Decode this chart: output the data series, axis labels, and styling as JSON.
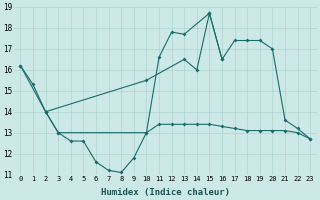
{
  "xlabel": "Humidex (Indice chaleur)",
  "bg_color": "#cce9e7",
  "line_color": "#1a6b6b",
  "grid_color": "#aed4d0",
  "ylim": [
    11,
    19
  ],
  "xlim": [
    -0.5,
    23.5
  ],
  "yticks": [
    11,
    12,
    13,
    14,
    15,
    16,
    17,
    18,
    19
  ],
  "xticks": [
    0,
    1,
    2,
    3,
    4,
    5,
    6,
    7,
    8,
    9,
    10,
    11,
    12,
    13,
    14,
    15,
    16,
    17,
    18,
    19,
    20,
    21,
    22,
    23
  ],
  "series1_x": [
    0,
    1,
    2,
    3,
    4,
    5,
    6,
    7,
    8,
    9,
    10,
    11,
    12,
    13,
    15,
    16
  ],
  "series1_y": [
    16.2,
    15.3,
    14.0,
    13.0,
    12.6,
    12.6,
    11.6,
    11.2,
    11.1,
    11.8,
    13.0,
    16.6,
    17.8,
    17.7,
    18.7,
    16.5
  ],
  "series2_x": [
    0,
    2,
    10,
    13,
    14,
    15,
    16,
    17,
    18,
    19,
    20,
    21,
    22,
    23
  ],
  "series2_y": [
    16.2,
    14.0,
    15.5,
    16.5,
    16.0,
    18.7,
    16.5,
    17.4,
    17.4,
    17.4,
    17.0,
    13.6,
    13.2,
    12.7
  ],
  "series3_x": [
    2,
    3,
    10,
    11,
    12,
    13,
    14,
    15,
    16,
    17,
    18,
    19,
    20,
    21,
    22,
    23
  ],
  "series3_y": [
    14.0,
    13.0,
    13.0,
    13.4,
    13.4,
    13.4,
    13.4,
    13.4,
    13.3,
    13.2,
    13.1,
    13.1,
    13.1,
    13.1,
    13.0,
    12.7
  ]
}
